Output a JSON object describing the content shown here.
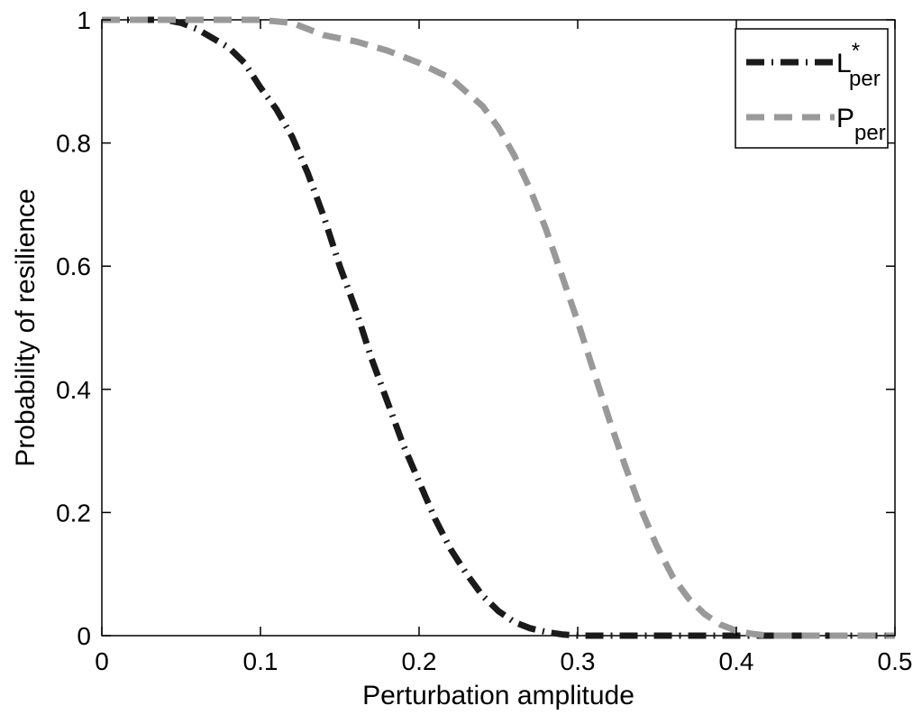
{
  "chart_data": {
    "type": "line",
    "xlabel": "Perturbation amplitude",
    "ylabel": "Probability of resilience",
    "xlim": [
      0,
      0.5
    ],
    "ylim": [
      0,
      1
    ],
    "x_ticks": [
      "0",
      "0.1",
      "0.2",
      "0.3",
      "0.4",
      "0.5"
    ],
    "y_ticks": [
      "0",
      "0.2",
      "0.4",
      "0.6",
      "0.8",
      "1"
    ],
    "grid": false,
    "legend_position": "top-right",
    "series": [
      {
        "name": "L*per",
        "legend_main": "L",
        "legend_sup": "*",
        "legend_sub": "per",
        "color": "#1a1a1a",
        "style": "dash-dot",
        "x": [
          0,
          0.02,
          0.04,
          0.05,
          0.06,
          0.08,
          0.09,
          0.1,
          0.11,
          0.12,
          0.13,
          0.14,
          0.15,
          0.16,
          0.17,
          0.18,
          0.19,
          0.2,
          0.21,
          0.22,
          0.23,
          0.24,
          0.25,
          0.26,
          0.27,
          0.28,
          0.29,
          0.3,
          0.32,
          0.35,
          0.4,
          0.45,
          0.5
        ],
        "y": [
          1.0,
          1.0,
          1.0,
          0.995,
          0.985,
          0.955,
          0.93,
          0.89,
          0.855,
          0.81,
          0.75,
          0.68,
          0.6,
          0.53,
          0.45,
          0.38,
          0.31,
          0.25,
          0.19,
          0.14,
          0.1,
          0.065,
          0.04,
          0.022,
          0.012,
          0.006,
          0.002,
          0.0,
          0.0,
          0.0,
          0.0,
          0.0,
          0.0
        ]
      },
      {
        "name": "Pper",
        "legend_main": "P",
        "legend_sup": "",
        "legend_sub": "per",
        "color": "#999999",
        "style": "dashed",
        "x": [
          0,
          0.05,
          0.1,
          0.12,
          0.14,
          0.16,
          0.18,
          0.2,
          0.22,
          0.24,
          0.25,
          0.26,
          0.27,
          0.28,
          0.29,
          0.3,
          0.31,
          0.32,
          0.33,
          0.34,
          0.35,
          0.36,
          0.37,
          0.38,
          0.39,
          0.4,
          0.41,
          0.42,
          0.45,
          0.5
        ],
        "y": [
          1.0,
          1.0,
          1.0,
          0.995,
          0.975,
          0.965,
          0.95,
          0.93,
          0.905,
          0.86,
          0.825,
          0.78,
          0.725,
          0.66,
          0.585,
          0.51,
          0.43,
          0.35,
          0.275,
          0.205,
          0.145,
          0.095,
          0.06,
          0.035,
          0.018,
          0.008,
          0.003,
          0.0,
          0.0,
          0.0
        ]
      }
    ]
  }
}
